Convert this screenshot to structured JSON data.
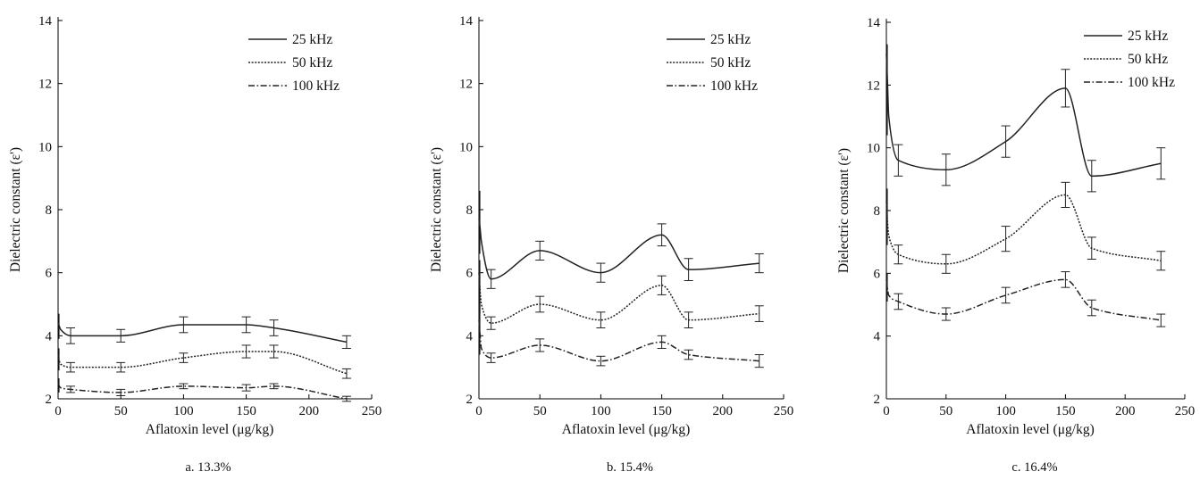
{
  "figure": {
    "panels": [
      {
        "caption": "a. 13.3%"
      },
      {
        "caption": "b. 15.4%"
      },
      {
        "caption": "c. 16.4%"
      }
    ]
  },
  "chart_data": [
    {
      "type": "line",
      "caption": "a. 13.3%",
      "xlabel": "Aflatoxin level (μg/kg)",
      "ylabel": "Dielectric constant (ε')",
      "xlim": [
        0,
        250
      ],
      "ylim": [
        2,
        14
      ],
      "xticks": [
        0,
        50,
        100,
        150,
        200,
        250
      ],
      "yticks": [
        2,
        4,
        6,
        8,
        10,
        12,
        14
      ],
      "grid": false,
      "legend_position": "top-right",
      "x": [
        0,
        1,
        2,
        10,
        50,
        100,
        150,
        172,
        230
      ],
      "series": [
        {
          "name": "25 kHz",
          "style": "solid",
          "values": [
            4.4,
            4.3,
            4.2,
            4.0,
            4.0,
            4.35,
            4.35,
            4.25,
            3.8
          ],
          "errors": [
            0.3,
            0.3,
            0.3,
            0.25,
            0.2,
            0.25,
            0.25,
            0.25,
            0.2
          ]
        },
        {
          "name": "50 kHz",
          "style": "dotted",
          "values": [
            3.4,
            3.2,
            3.1,
            3.0,
            3.0,
            3.3,
            3.5,
            3.5,
            2.8
          ],
          "errors": [
            0.2,
            0.2,
            0.2,
            0.15,
            0.15,
            0.15,
            0.2,
            0.2,
            0.15
          ]
        },
        {
          "name": "100 kHz",
          "style": "dashdot",
          "values": [
            2.5,
            2.4,
            2.35,
            2.3,
            2.2,
            2.4,
            2.35,
            2.4,
            2.0
          ],
          "errors": [
            0.15,
            0.15,
            0.15,
            0.1,
            0.1,
            0.08,
            0.1,
            0.08,
            0.08
          ]
        }
      ]
    },
    {
      "type": "line",
      "caption": "b. 15.4%",
      "xlabel": "Aflatoxin level (μg/kg)",
      "ylabel": "Dielectric constant (ε')",
      "xlim": [
        0,
        250
      ],
      "ylim": [
        2,
        14
      ],
      "xticks": [
        0,
        50,
        100,
        150,
        200,
        250
      ],
      "yticks": [
        2,
        4,
        6,
        8,
        10,
        12,
        14
      ],
      "grid": false,
      "legend_position": "top-right",
      "x": [
        0,
        1,
        2,
        10,
        50,
        100,
        150,
        172,
        230
      ],
      "series": [
        {
          "name": "25 kHz",
          "style": "solid",
          "values": [
            7.7,
            7.4,
            7.0,
            5.8,
            6.7,
            6.0,
            7.2,
            6.1,
            6.3
          ],
          "errors": [
            0.9,
            0.5,
            0.4,
            0.3,
            0.3,
            0.3,
            0.35,
            0.35,
            0.3
          ]
        },
        {
          "name": "50 kHz",
          "style": "dotted",
          "values": [
            6.0,
            5.4,
            5.0,
            4.4,
            5.0,
            4.5,
            5.6,
            4.5,
            4.7
          ],
          "errors": [
            0.4,
            0.3,
            0.3,
            0.2,
            0.25,
            0.25,
            0.3,
            0.25,
            0.25
          ]
        },
        {
          "name": "100 kHz",
          "style": "dashdot",
          "values": [
            4.5,
            4.0,
            3.6,
            3.3,
            3.7,
            3.2,
            3.8,
            3.4,
            3.2
          ],
          "errors": [
            0.5,
            0.3,
            0.2,
            0.15,
            0.2,
            0.15,
            0.2,
            0.15,
            0.2
          ]
        }
      ]
    },
    {
      "type": "line",
      "caption": "c. 16.4%",
      "xlabel": "Aflatoxin level (μg/kg)",
      "ylabel": "Dielectric constant (ε')",
      "xlim": [
        0,
        250
      ],
      "ylim": [
        2,
        14
      ],
      "xticks": [
        0,
        50,
        100,
        150,
        200,
        250
      ],
      "yticks": [
        2,
        4,
        6,
        8,
        10,
        12,
        14
      ],
      "grid": false,
      "legend_position": "top-right",
      "x": [
        0,
        1,
        2,
        10,
        50,
        100,
        150,
        172,
        230
      ],
      "series": [
        {
          "name": "25 kHz",
          "style": "solid",
          "values": [
            13.0,
            12.0,
            11.0,
            9.6,
            9.3,
            10.2,
            11.9,
            9.1,
            9.5
          ],
          "errors": [
            0.3,
            0.3,
            0.6,
            0.5,
            0.5,
            0.5,
            0.6,
            0.5,
            0.5
          ]
        },
        {
          "name": "50 kHz",
          "style": "dotted",
          "values": [
            8.3,
            7.6,
            7.2,
            6.6,
            6.3,
            7.1,
            8.5,
            6.8,
            6.4
          ],
          "errors": [
            0.4,
            0.3,
            0.3,
            0.3,
            0.3,
            0.4,
            0.4,
            0.35,
            0.3
          ]
        },
        {
          "name": "100 kHz",
          "style": "dashdot",
          "values": [
            5.8,
            5.5,
            5.3,
            5.1,
            4.7,
            5.3,
            5.8,
            4.9,
            4.5
          ],
          "errors": [
            0.2,
            0.2,
            0.2,
            0.25,
            0.2,
            0.25,
            0.25,
            0.25,
            0.2
          ]
        }
      ]
    }
  ]
}
